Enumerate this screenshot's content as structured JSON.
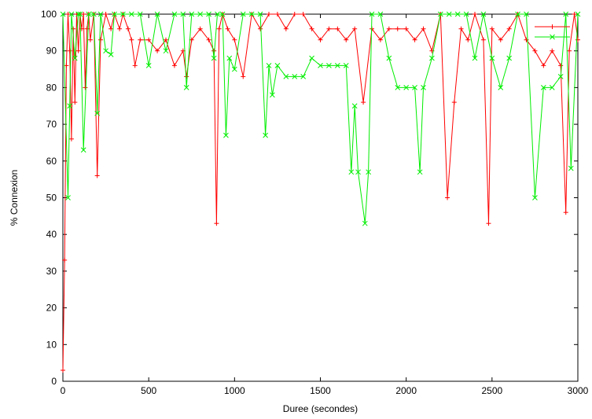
{
  "chart_data": {
    "type": "line",
    "xlabel": "Duree (secondes)",
    "ylabel": "% Connexion",
    "xlim": [
      0,
      3000
    ],
    "ylim": [
      0,
      100
    ],
    "xticks": [
      0,
      500,
      1000,
      1500,
      2000,
      2500,
      3000
    ],
    "yticks": [
      0,
      10,
      20,
      30,
      40,
      50,
      60,
      70,
      80,
      90,
      100
    ],
    "grid": false,
    "legend": "top-right",
    "series": [
      {
        "color": "#ff0000",
        "marker": "+",
        "x": [
          0,
          10,
          20,
          30,
          40,
          50,
          60,
          70,
          80,
          90,
          100,
          110,
          120,
          130,
          140,
          150,
          160,
          180,
          200,
          220,
          250,
          280,
          300,
          330,
          350,
          380,
          400,
          420,
          450,
          500,
          550,
          600,
          650,
          700,
          720,
          750,
          800,
          850,
          880,
          895,
          910,
          930,
          960,
          1000,
          1050,
          1100,
          1150,
          1200,
          1250,
          1300,
          1350,
          1400,
          1450,
          1500,
          1550,
          1600,
          1650,
          1700,
          1750,
          1800,
          1850,
          1900,
          1950,
          2000,
          2050,
          2100,
          2150,
          2200,
          2240,
          2280,
          2320,
          2360,
          2400,
          2450,
          2480,
          2500,
          2550,
          2600,
          2650,
          2700,
          2750,
          2800,
          2850,
          2900,
          2930,
          2950,
          2980,
          3000
        ],
        "y": [
          3,
          33,
          86,
          100,
          90,
          66,
          96,
          76,
          100,
          90,
          100,
          96,
          100,
          80,
          96,
          100,
          93,
          100,
          56,
          93,
          100,
          96,
          100,
          96,
          100,
          96,
          93,
          86,
          93,
          93,
          90,
          93,
          86,
          90,
          83,
          93,
          96,
          93,
          90,
          43,
          96,
          100,
          96,
          93,
          83,
          100,
          96,
          100,
          100,
          96,
          100,
          100,
          96,
          93,
          96,
          96,
          93,
          96,
          76,
          96,
          93,
          96,
          96,
          96,
          93,
          96,
          90,
          100,
          50,
          76,
          96,
          93,
          100,
          93,
          43,
          96,
          93,
          96,
          100,
          93,
          90,
          86,
          90,
          86,
          46,
          90,
          100,
          93
        ]
      },
      {
        "color": "#00ee00",
        "marker": "x",
        "x": [
          0,
          30,
          40,
          50,
          70,
          90,
          100,
          120,
          150,
          180,
          200,
          220,
          250,
          280,
          300,
          350,
          400,
          450,
          500,
          550,
          600,
          650,
          700,
          720,
          750,
          800,
          850,
          880,
          900,
          930,
          950,
          970,
          1000,
          1050,
          1100,
          1150,
          1180,
          1200,
          1220,
          1250,
          1300,
          1350,
          1400,
          1450,
          1500,
          1550,
          1600,
          1650,
          1680,
          1700,
          1720,
          1760,
          1780,
          1800,
          1850,
          1900,
          1950,
          2000,
          2050,
          2080,
          2100,
          2150,
          2200,
          2250,
          2300,
          2350,
          2400,
          2450,
          2500,
          2550,
          2600,
          2650,
          2700,
          2750,
          2800,
          2850,
          2900,
          2930,
          2960,
          3000
        ],
        "y": [
          100,
          50,
          75,
          100,
          88,
          100,
          100,
          63,
          100,
          100,
          73,
          100,
          90,
          89,
          100,
          100,
          100,
          100,
          86,
          100,
          90,
          100,
          100,
          80,
          100,
          100,
          100,
          88,
          100,
          100,
          67,
          88,
          85,
          100,
          100,
          100,
          67,
          86,
          78,
          86,
          83,
          83,
          83,
          88,
          86,
          86,
          86,
          86,
          57,
          75,
          57,
          43,
          57,
          100,
          100,
          88,
          80,
          80,
          80,
          57,
          80,
          88,
          100,
          100,
          100,
          100,
          88,
          100,
          88,
          80,
          88,
          100,
          100,
          50,
          80,
          80,
          83,
          100,
          58,
          100
        ]
      }
    ]
  }
}
